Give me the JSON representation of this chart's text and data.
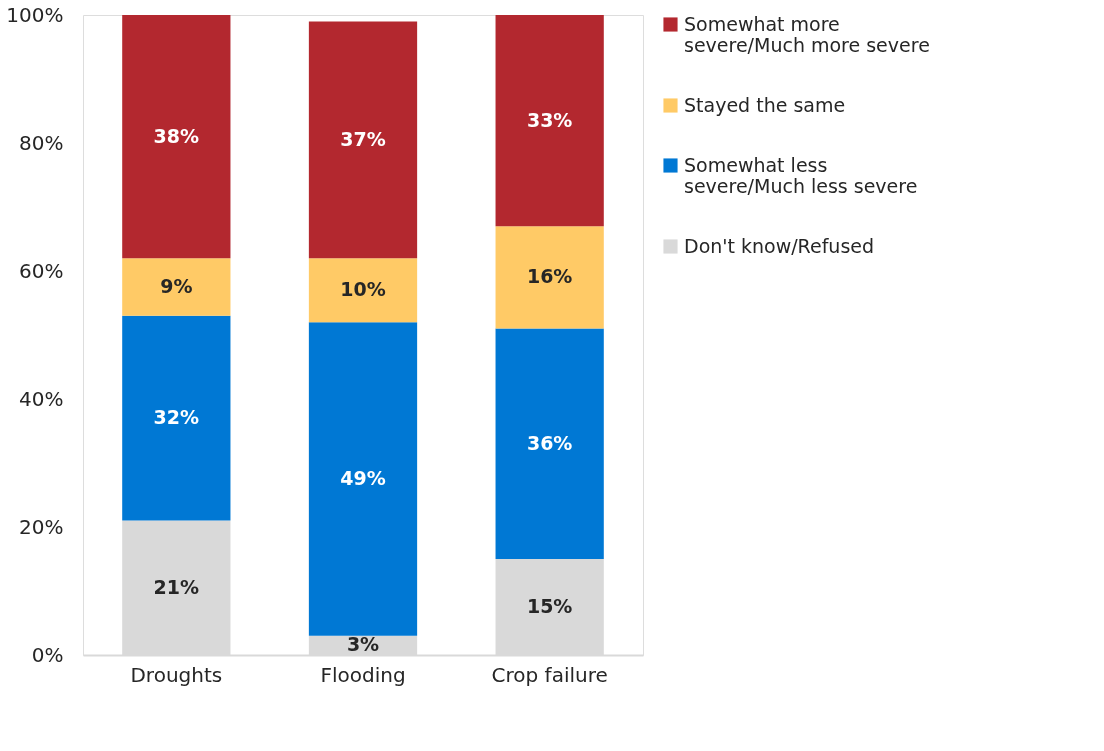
{
  "chart_data": {
    "type": "bar",
    "stacked": true,
    "categories": [
      "Droughts",
      "Flooding",
      "Crop failure"
    ],
    "series": [
      {
        "name": "Don't know/Refused",
        "color": "#d9d9d9",
        "values": [
          21,
          3,
          15
        ],
        "value_labels": [
          "21%",
          "3%",
          "15%"
        ]
      },
      {
        "name": "Somewhat less severe/Much less severe",
        "color": "#0078d4",
        "values": [
          32,
          49,
          36
        ],
        "value_labels": [
          "32%",
          "49%",
          "36%"
        ]
      },
      {
        "name": "Stayed the same",
        "color": "#ffca66",
        "values": [
          9,
          10,
          16
        ],
        "value_labels": [
          "9%",
          "10%",
          "16%"
        ]
      },
      {
        "name": "Somewhat more severe/Much more severe",
        "color": "#b3282f",
        "values": [
          38,
          37,
          33
        ],
        "value_labels": [
          "38%",
          "37%",
          "33%"
        ]
      }
    ],
    "ylim": [
      0,
      100
    ],
    "yticks": [
      {
        "value": 0,
        "label": "0%"
      },
      {
        "value": 20,
        "label": "20%"
      },
      {
        "value": 40,
        "label": "40%"
      },
      {
        "value": 60,
        "label": "60%"
      },
      {
        "value": 80,
        "label": "80%"
      },
      {
        "value": 100,
        "label": "100%"
      }
    ],
    "grid": false,
    "legend": "right"
  }
}
